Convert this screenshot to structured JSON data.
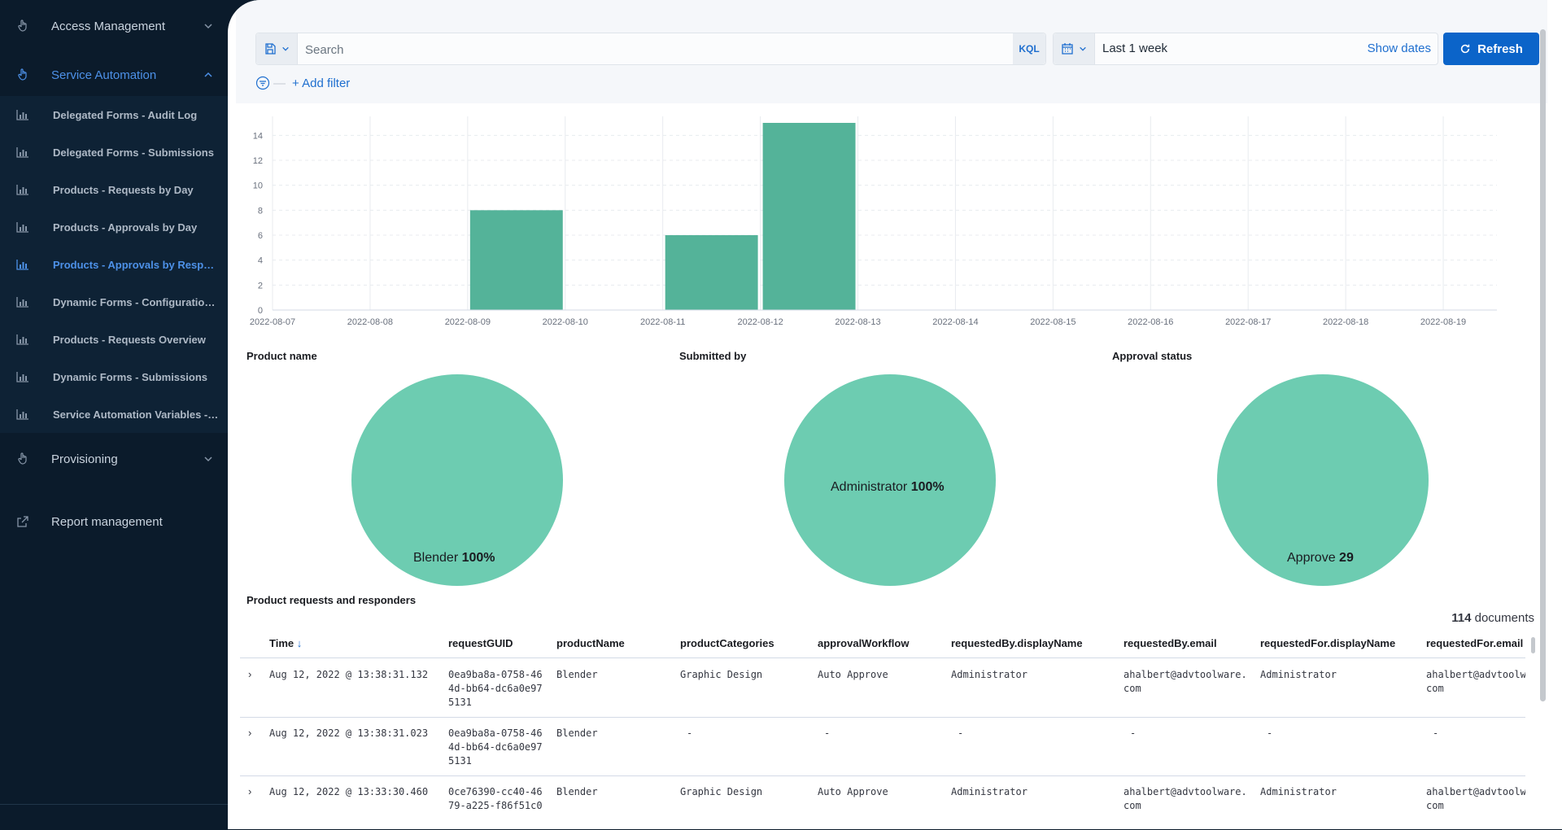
{
  "sidebar": {
    "sections": [
      {
        "label": "Access Management",
        "icon": "hand-pointer-icon",
        "state": "collapsed"
      },
      {
        "label": "Service Automation",
        "icon": "hand-pointer-icon",
        "state": "expanded"
      },
      {
        "label": "Provisioning",
        "icon": "hand-pointer-icon",
        "state": "collapsed"
      },
      {
        "label": "Report management",
        "icon": "external-link-icon"
      }
    ],
    "items": [
      {
        "label": "Delegated Forms - Audit Log",
        "icon": "bar-chart-icon"
      },
      {
        "label": "Delegated Forms - Submissions",
        "icon": "bar-chart-icon"
      },
      {
        "label": "Products - Requests by Day",
        "icon": "bar-chart-icon"
      },
      {
        "label": "Products - Approvals by Day",
        "icon": "bar-chart-icon"
      },
      {
        "label": "Products - Approvals by Responder",
        "icon": "bar-chart-icon",
        "active": true
      },
      {
        "label": "Dynamic Forms - Configuration Overview",
        "icon": "bar-chart-icon"
      },
      {
        "label": "Products - Requests Overview",
        "icon": "bar-chart-icon"
      },
      {
        "label": "Dynamic Forms - Submissions",
        "icon": "bar-chart-icon"
      },
      {
        "label": "Service Automation Variables - Overview",
        "icon": "bar-chart-icon"
      }
    ]
  },
  "querybar": {
    "search_placeholder": "Search",
    "kql_label": "KQL",
    "date_range": "Last 1 week",
    "show_dates_label": "Show dates",
    "refresh_label": "Refresh",
    "add_filter_label": "+ Add filter"
  },
  "colors": {
    "accent": "#0b64c9",
    "sidebar_bg": "#0b1b2b",
    "bar_fill": "#54b399",
    "pie_fill": "#6dccb1"
  },
  "chart_data": [
    {
      "type": "bar",
      "categories": [
        "2022-08-07",
        "2022-08-08",
        "2022-08-09",
        "2022-08-10",
        "2022-08-11",
        "2022-08-12",
        "2022-08-13",
        "2022-08-14",
        "2022-08-15",
        "2022-08-16",
        "2022-08-17",
        "2022-08-18",
        "2022-08-19"
      ],
      "values": [
        0,
        0,
        8,
        0,
        6,
        15,
        0,
        0,
        0,
        0,
        0,
        0,
        0
      ],
      "y_ticks": [
        "0",
        "2",
        "4",
        "6",
        "8",
        "10",
        "12",
        "14"
      ],
      "ylim": [
        0,
        15
      ],
      "grid": true
    },
    {
      "type": "pie",
      "title": "Product name",
      "slices": [
        {
          "label": "Blender",
          "value": 100,
          "display": "100%"
        }
      ]
    },
    {
      "type": "pie",
      "title": "Submitted by",
      "slices": [
        {
          "label": "Administrator",
          "value": 100,
          "display": "100%"
        }
      ]
    },
    {
      "type": "pie",
      "title": "Approval status",
      "slices": [
        {
          "label": "Approve",
          "value": 29,
          "display": "29"
        }
      ]
    }
  ],
  "table": {
    "title": "Product requests and responders",
    "count": "114",
    "count_suffix": "documents",
    "sort_icon": "arrow-down-icon",
    "columns": [
      "Time",
      "requestGUID",
      "productName",
      "productCategories",
      "approvalWorkflow",
      "requestedBy.displayName",
      "requestedBy.email",
      "requestedFor.displayName",
      "requestedFor.email"
    ],
    "rows": [
      {
        "time": "Aug 12, 2022 @ 13:38:31.132",
        "guid": [
          "0ea9ba8a-0758-46",
          "4d-bb64-dc6a0e97",
          "5131"
        ],
        "product": "Blender",
        "categories": "Graphic Design",
        "workflow": "Auto Approve",
        "by_name": "Administrator",
        "by_email": [
          "ahalbert@advtoolware.",
          "com"
        ],
        "for_name": "Administrator",
        "for_email": [
          "ahalbert@advtoolw",
          "com"
        ]
      },
      {
        "time": "Aug 12, 2022 @ 13:38:31.023",
        "guid": [
          "0ea9ba8a-0758-46",
          "4d-bb64-dc6a0e97",
          "5131"
        ],
        "product": "Blender",
        "categories": "-",
        "workflow": "-",
        "by_name": "-",
        "by_email": [
          "-",
          ""
        ],
        "for_name": "-",
        "for_email": [
          "-",
          ""
        ]
      },
      {
        "time": "Aug 12, 2022 @ 13:33:30.460",
        "guid": [
          "0ce76390-cc40-46",
          "79-a225-f86f51c0",
          ""
        ],
        "product": "Blender",
        "categories": "Graphic Design",
        "workflow": "Auto Approve",
        "by_name": "Administrator",
        "by_email": [
          "ahalbert@advtoolware.",
          "com"
        ],
        "for_name": "Administrator",
        "for_email": [
          "ahalbert@advtoolw",
          "com"
        ]
      }
    ]
  }
}
